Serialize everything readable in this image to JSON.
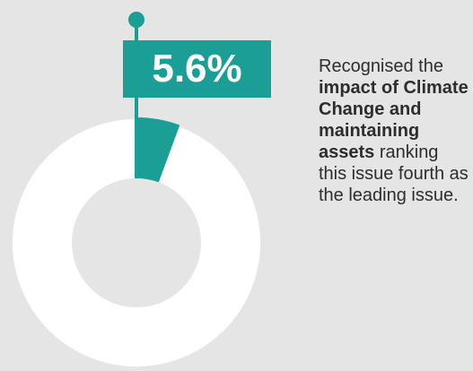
{
  "chart_data": {
    "type": "pie",
    "variant": "donut",
    "values": [
      5.6,
      94.4
    ],
    "highlight_index": 0,
    "highlight_label": "5.6%",
    "colors": {
      "highlight": "#1a9e96",
      "remainder": "#ffffff",
      "background": "#e5e5e6"
    }
  },
  "caption": {
    "part1": "Recognised the ",
    "bold": "impact of Climate Change and maintaining assets",
    "part2": " ranking this issue fourth as the leading issue."
  }
}
